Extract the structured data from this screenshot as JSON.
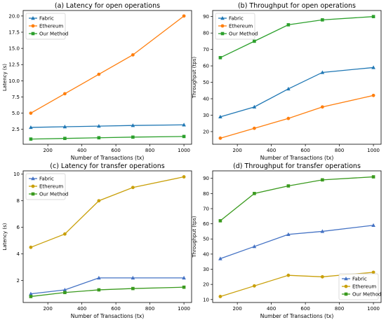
{
  "chart_data": [
    {
      "type": "line",
      "title": "(a) Latency for open operations",
      "xlabel": "Number of Transactions (tx)",
      "ylabel": "Latency (s)",
      "x": [
        100,
        300,
        500,
        700,
        1000
      ],
      "xlim": [
        55,
        1045
      ],
      "ylim": [
        0.2,
        20.85
      ],
      "xticks": [
        200,
        400,
        600,
        800,
        1000
      ],
      "yticks": [
        2.5,
        5.0,
        7.5,
        10.0,
        12.5,
        15.0,
        17.5,
        20.0
      ],
      "ytick_labels": [
        "2.5",
        "5.0",
        "7.5",
        "10.0",
        "12.5",
        "15.0",
        "17.5",
        "20.0"
      ],
      "legend": "top-left",
      "series": [
        {
          "name": "Fabric",
          "values": [
            2.8,
            2.9,
            3.0,
            3.1,
            3.2
          ],
          "color": "#1f77b4",
          "marker": "triangle"
        },
        {
          "name": "Ethereum",
          "values": [
            5.0,
            8.0,
            11.0,
            14.0,
            20.0
          ],
          "color": "#ff7f0e",
          "marker": "circle"
        },
        {
          "name": "Our Method",
          "values": [
            1.0,
            1.1,
            1.2,
            1.3,
            1.4
          ],
          "color": "#2ca02c",
          "marker": "square"
        }
      ]
    },
    {
      "type": "line",
      "title": "(b) Throughput for open operations",
      "xlabel": "Number of Transactions (tx)",
      "ylabel": "Throughput (tps)",
      "x": [
        100,
        300,
        500,
        700,
        1000
      ],
      "xlim": [
        55,
        1045
      ],
      "ylim": [
        12.3,
        93.7
      ],
      "xticks": [
        200,
        400,
        600,
        800,
        1000
      ],
      "yticks": [
        20,
        30,
        40,
        50,
        60,
        70,
        80,
        90
      ],
      "ytick_labels": [
        "20",
        "30",
        "40",
        "50",
        "60",
        "70",
        "80",
        "90"
      ],
      "legend": "top-left",
      "series": [
        {
          "name": "Fabric",
          "values": [
            29,
            35,
            46,
            56,
            59
          ],
          "color": "#1f77b4",
          "marker": "triangle"
        },
        {
          "name": "Ethereum",
          "values": [
            16,
            22,
            28,
            35,
            42
          ],
          "color": "#ff7f0e",
          "marker": "circle"
        },
        {
          "name": "Our Method",
          "values": [
            65,
            75,
            85,
            88,
            90
          ],
          "color": "#2ca02c",
          "marker": "square"
        }
      ]
    },
    {
      "type": "line",
      "title": "(c) Latency for transfer operations",
      "xlabel": "Number of Transactions (tx)",
      "ylabel": "Latency (s)",
      "x": [
        100,
        300,
        500,
        700,
        1000
      ],
      "xlim": [
        55,
        1045
      ],
      "ylim": [
        0.35,
        10.25
      ],
      "xticks": [
        200,
        400,
        600,
        800,
        1000
      ],
      "yticks": [
        2,
        4,
        6,
        8,
        10
      ],
      "ytick_labels": [
        "2",
        "4",
        "6",
        "8",
        "10"
      ],
      "legend": "top-left",
      "series": [
        {
          "name": "Fabric",
          "values": [
            1.0,
            1.3,
            2.2,
            2.2,
            2.2
          ],
          "color": "#4472c4",
          "marker": "triangle"
        },
        {
          "name": "Ethereum",
          "values": [
            4.5,
            5.5,
            8.0,
            9.0,
            9.8
          ],
          "color": "#c9a00a",
          "marker": "circle"
        },
        {
          "name": "Our Method",
          "values": [
            0.8,
            1.1,
            1.3,
            1.4,
            1.5
          ],
          "color": "#3a9a1e",
          "marker": "square"
        }
      ]
    },
    {
      "type": "line",
      "title": "(d) Throughput for transfer operations",
      "xlabel": "Number of Transactions (tx)",
      "ylabel": "Throughput (tps)",
      "x": [
        100,
        300,
        500,
        700,
        1000
      ],
      "xlim": [
        55,
        1045
      ],
      "ylim": [
        8.05,
        94.95
      ],
      "xticks": [
        200,
        400,
        600,
        800,
        1000
      ],
      "yticks": [
        10,
        20,
        30,
        40,
        50,
        60,
        70,
        80,
        90
      ],
      "ytick_labels": [
        "10",
        "20",
        "30",
        "40",
        "50",
        "60",
        "70",
        "80",
        "90"
      ],
      "legend": "bottom-right",
      "series": [
        {
          "name": "Fabric",
          "values": [
            37,
            45,
            53,
            55,
            59
          ],
          "color": "#4472c4",
          "marker": "triangle"
        },
        {
          "name": "Ethereum",
          "values": [
            12,
            19,
            26,
            25,
            28
          ],
          "color": "#c9a00a",
          "marker": "circle"
        },
        {
          "name": "Our Method",
          "values": [
            62,
            80,
            85,
            89,
            91
          ],
          "color": "#3a9a1e",
          "marker": "square"
        }
      ]
    }
  ]
}
